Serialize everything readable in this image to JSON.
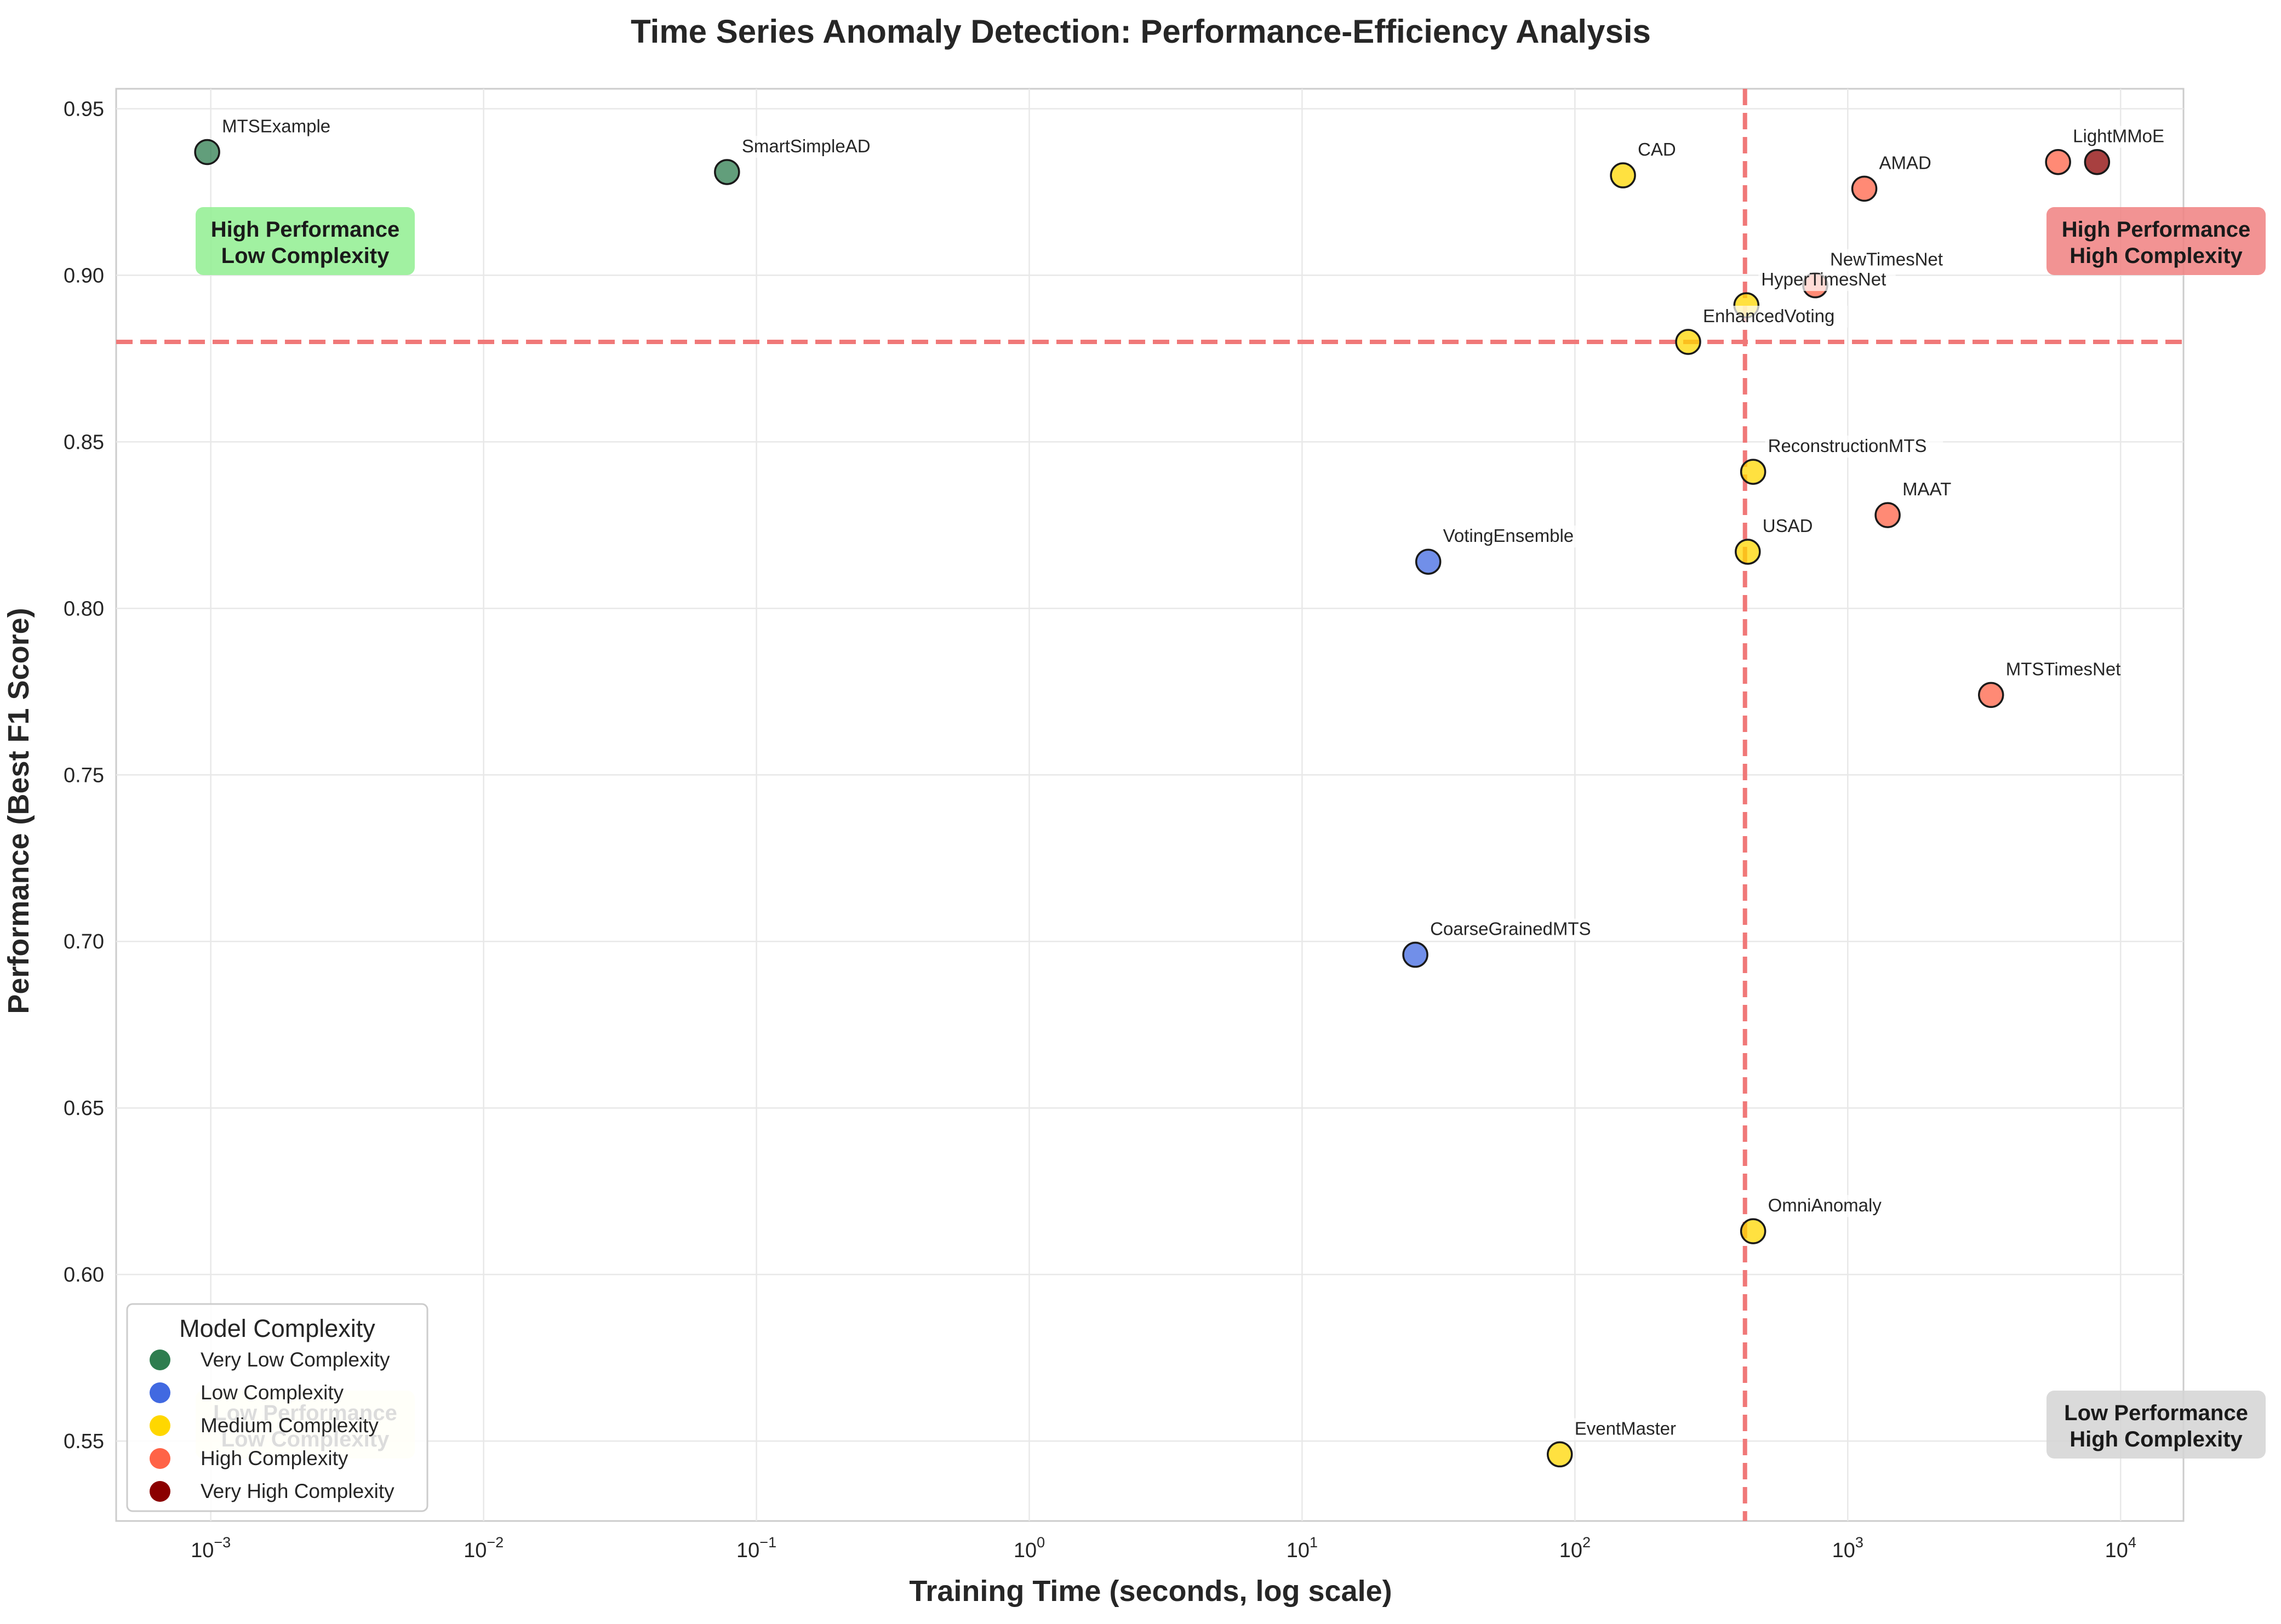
{
  "chart_data": {
    "type": "scatter",
    "title": "Time Series Anomaly Detection: Performance-Efficiency Analysis",
    "xlabel": "Training Time (seconds, log scale)",
    "ylabel": "Performance (Best F1 Score)",
    "xscale": "log",
    "xlim": [
      0.00045,
      17000
    ],
    "ylim": [
      0.526,
      0.956
    ],
    "xticks": [
      {
        "value": 0.001,
        "base": "10",
        "exp": "−3"
      },
      {
        "value": 0.01,
        "base": "10",
        "exp": "−2"
      },
      {
        "value": 0.1,
        "base": "10",
        "exp": "−1"
      },
      {
        "value": 1,
        "base": "10",
        "exp": "0"
      },
      {
        "value": 10,
        "base": "10",
        "exp": "1"
      },
      {
        "value": 100,
        "base": "10",
        "exp": "2"
      },
      {
        "value": 1000,
        "base": "10",
        "exp": "3"
      },
      {
        "value": 10000,
        "base": "10",
        "exp": "4"
      }
    ],
    "yticks": [
      {
        "value": 0.55,
        "label": "0.55"
      },
      {
        "value": 0.6,
        "label": "0.60"
      },
      {
        "value": 0.65,
        "label": "0.65"
      },
      {
        "value": 0.7,
        "label": "0.70"
      },
      {
        "value": 0.75,
        "label": "0.75"
      },
      {
        "value": 0.8,
        "label": "0.80"
      },
      {
        "value": 0.85,
        "label": "0.85"
      },
      {
        "value": 0.9,
        "label": "0.90"
      },
      {
        "value": 0.95,
        "label": "0.95"
      }
    ],
    "grid": true,
    "threshold_lines": {
      "x": 420,
      "y": 0.88,
      "color": "#f07878"
    },
    "colors": {
      "very_low": "#2e7d4f",
      "low": "#4169e1",
      "medium": "#ffd700",
      "high": "#ff6347",
      "very_high": "#8b0000"
    },
    "points": [
      {
        "name": "MTSExample",
        "x": 0.00097,
        "y": 0.937,
        "complexity": "very_low"
      },
      {
        "name": "SmartSimpleAD",
        "x": 0.078,
        "y": 0.931,
        "complexity": "very_low"
      },
      {
        "name": "CAD",
        "x": 150,
        "y": 0.93,
        "complexity": "medium"
      },
      {
        "name": "AMAD",
        "x": 1150,
        "y": 0.926,
        "complexity": "high"
      },
      {
        "name": "LightMMoE",
        "x": 5900,
        "y": 0.934,
        "complexity": "high"
      },
      {
        "name": "",
        "x": 8200,
        "y": 0.934,
        "complexity": "very_high"
      },
      {
        "name": "NewTimesNet",
        "x": 760,
        "y": 0.897,
        "complexity": "high"
      },
      {
        "name": "HyperTimesNet",
        "x": 425,
        "y": 0.891,
        "complexity": "medium"
      },
      {
        "name": "EnhancedVoting",
        "x": 260,
        "y": 0.88,
        "complexity": "medium"
      },
      {
        "name": "ReconstructionMTS",
        "x": 450,
        "y": 0.841,
        "complexity": "medium"
      },
      {
        "name": "MAAT",
        "x": 1400,
        "y": 0.828,
        "complexity": "high"
      },
      {
        "name": "USAD",
        "x": 430,
        "y": 0.817,
        "complexity": "medium"
      },
      {
        "name": "VotingEnsemble",
        "x": 29,
        "y": 0.814,
        "complexity": "low"
      },
      {
        "name": "MTSTimesNet",
        "x": 3350,
        "y": 0.774,
        "complexity": "high"
      },
      {
        "name": "CoarseGrainedMTS",
        "x": 26,
        "y": 0.696,
        "complexity": "low"
      },
      {
        "name": "OmniAnomaly",
        "x": 450,
        "y": 0.613,
        "complexity": "medium"
      },
      {
        "name": "EventMaster",
        "x": 88,
        "y": 0.546,
        "complexity": "medium"
      }
    ],
    "quadrant_labels": [
      {
        "id": "hp-lc",
        "lines": [
          "High Performance",
          "Low Complexity"
        ],
        "bg": "#90ee90",
        "position": "top-left"
      },
      {
        "id": "hp-hc",
        "lines": [
          "High Performance",
          "High Complexity"
        ],
        "bg": "#f08080",
        "position": "top-right"
      },
      {
        "id": "lp-lc",
        "lines": [
          "Low Performance",
          "Low Complexity"
        ],
        "bg": "#fffacd",
        "position": "bottom-left"
      },
      {
        "id": "lp-hc",
        "lines": [
          "Low Performance",
          "High Complexity"
        ],
        "bg": "#d3d3d3",
        "position": "bottom-right"
      }
    ],
    "legend": {
      "title": "Model Complexity",
      "placement": "lower left",
      "items": [
        {
          "label": "Very Low Complexity",
          "complexity": "very_low"
        },
        {
          "label": "Low Complexity",
          "complexity": "low"
        },
        {
          "label": "Medium Complexity",
          "complexity": "medium"
        },
        {
          "label": "High Complexity",
          "complexity": "high"
        },
        {
          "label": "Very High Complexity",
          "complexity": "very_high"
        }
      ]
    }
  }
}
